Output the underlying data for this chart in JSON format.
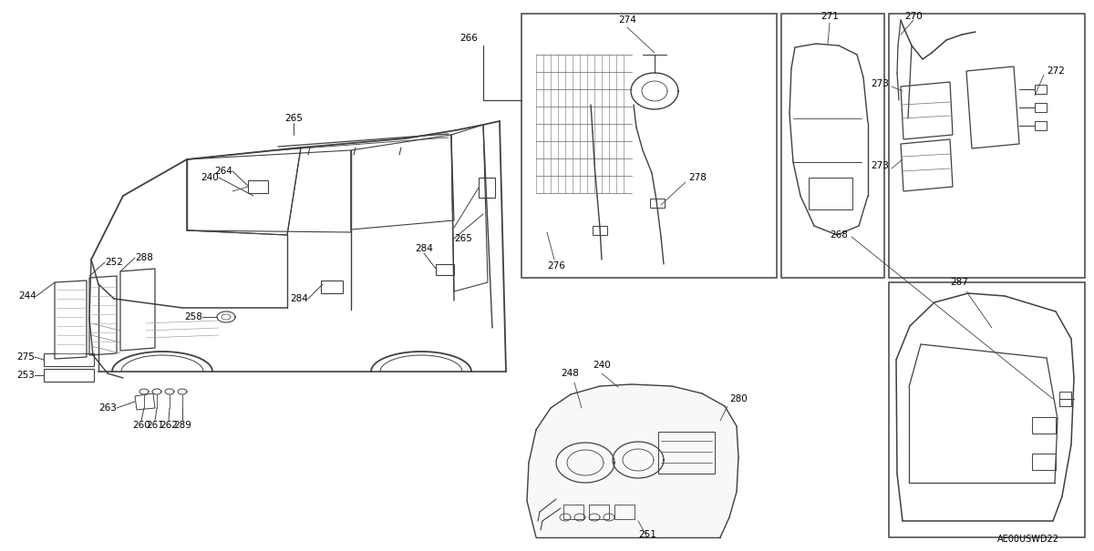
{
  "bg_color": "#ffffff",
  "line_color": "#404040",
  "watermark": "AE00USWD22"
}
